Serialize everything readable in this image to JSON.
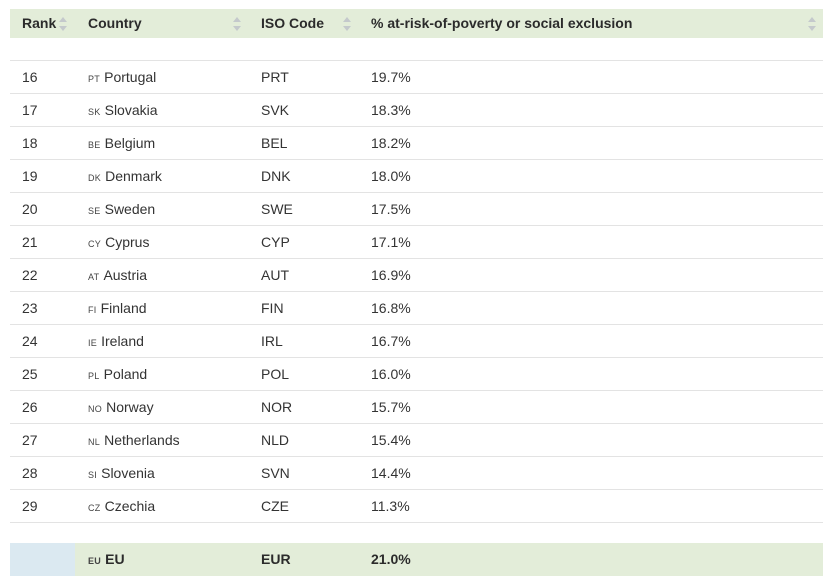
{
  "table": {
    "columns": [
      {
        "label": "Rank"
      },
      {
        "label": "Country"
      },
      {
        "label": "ISO Code"
      },
      {
        "label": "% at-risk-of-poverty or social exclusion"
      }
    ],
    "rows": [
      {
        "rank": "16",
        "code": "PT",
        "country": "Portugal",
        "iso": "PRT",
        "pct": "19.7%"
      },
      {
        "rank": "17",
        "code": "SK",
        "country": "Slovakia",
        "iso": "SVK",
        "pct": "18.3%"
      },
      {
        "rank": "18",
        "code": "BE",
        "country": "Belgium",
        "iso": "BEL",
        "pct": "18.2%"
      },
      {
        "rank": "19",
        "code": "DK",
        "country": "Denmark",
        "iso": "DNK",
        "pct": "18.0%"
      },
      {
        "rank": "20",
        "code": "SE",
        "country": "Sweden",
        "iso": "SWE",
        "pct": "17.5%"
      },
      {
        "rank": "21",
        "code": "CY",
        "country": "Cyprus",
        "iso": "CYP",
        "pct": "17.1%"
      },
      {
        "rank": "22",
        "code": "AT",
        "country": "Austria",
        "iso": "AUT",
        "pct": "16.9%"
      },
      {
        "rank": "23",
        "code": "FI",
        "country": "Finland",
        "iso": "FIN",
        "pct": "16.8%"
      },
      {
        "rank": "24",
        "code": "IE",
        "country": "Ireland",
        "iso": "IRL",
        "pct": "16.7%"
      },
      {
        "rank": "25",
        "code": "PL",
        "country": "Poland",
        "iso": "POL",
        "pct": "16.0%"
      },
      {
        "rank": "26",
        "code": "NO",
        "country": "Norway",
        "iso": "NOR",
        "pct": "15.7%"
      },
      {
        "rank": "27",
        "code": "NL",
        "country": "Netherlands",
        "iso": "NLD",
        "pct": "15.4%"
      },
      {
        "rank": "28",
        "code": "SI",
        "country": "Slovenia",
        "iso": "SVN",
        "pct": "14.4%"
      },
      {
        "rank": "29",
        "code": "CZ",
        "country": "Czechia",
        "iso": "CZE",
        "pct": "11.3%"
      }
    ],
    "footer": {
      "rank": "",
      "code": "EU",
      "country": "EU",
      "iso": "EUR",
      "pct": "21.0%"
    }
  },
  "icons": {
    "sort": "sort-up-down-icon"
  },
  "colors": {
    "header_bg": "#e3edd9",
    "footer_rank_bg": "#dbe9f1",
    "sort_icon": "#c4c9cc"
  }
}
